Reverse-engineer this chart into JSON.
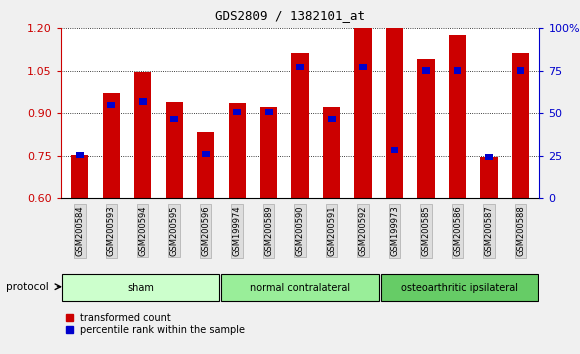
{
  "title": "GDS2809 / 1382101_at",
  "samples": [
    "GSM200584",
    "GSM200593",
    "GSM200594",
    "GSM200595",
    "GSM200596",
    "GSM199974",
    "GSM200589",
    "GSM200590",
    "GSM200591",
    "GSM200592",
    "GSM199973",
    "GSM200585",
    "GSM200586",
    "GSM200587",
    "GSM200588"
  ],
  "red_values": [
    0.753,
    0.972,
    1.046,
    0.94,
    0.835,
    0.938,
    0.922,
    1.113,
    0.922,
    1.2,
    1.2,
    1.09,
    1.175,
    0.745,
    1.113
  ],
  "blue_values": [
    0.753,
    0.93,
    0.942,
    0.879,
    0.757,
    0.905,
    0.905,
    1.063,
    0.879,
    1.063,
    0.769,
    1.051,
    1.051,
    0.745,
    1.051
  ],
  "groups": [
    {
      "label": "sham",
      "start": 0,
      "end": 5,
      "color": "#ccffcc"
    },
    {
      "label": "normal contralateral",
      "start": 5,
      "end": 10,
      "color": "#99ee99"
    },
    {
      "label": "osteoarthritic ipsilateral",
      "start": 10,
      "end": 15,
      "color": "#66cc66"
    }
  ],
  "ylim_left": [
    0.6,
    1.2
  ],
  "ylim_right": [
    0,
    100
  ],
  "yticks_left": [
    0.6,
    0.75,
    0.9,
    1.05,
    1.2
  ],
  "yticks_right": [
    0,
    25,
    50,
    75,
    100
  ],
  "ytick_labels_right": [
    "0",
    "25",
    "50",
    "75",
    "100%"
  ],
  "bar_color": "#cc0000",
  "dot_color": "#0000cc",
  "bar_width": 0.55,
  "protocol_label": "protocol",
  "legend_red": "transformed count",
  "legend_blue": "percentile rank within the sample",
  "background_color": "#f0f0f0",
  "plot_bg_color": "#ffffff",
  "tick_label_bg": "#dddddd",
  "tick_label_border": "#aaaaaa"
}
